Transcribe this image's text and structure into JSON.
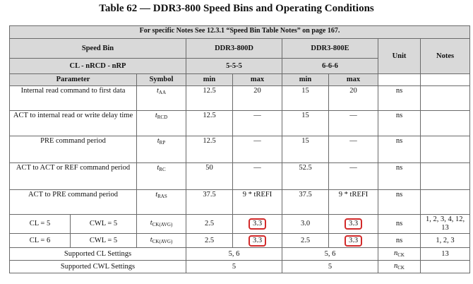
{
  "title": "Table 62 — DDR3-800 Speed Bins and Operating Conditions",
  "note": "For specific Notes See 12.3.1 “Speed Bin Table Notes” on page 167.",
  "header": {
    "speed_bin": "Speed Bin",
    "ddr3_800d": "DDR3-800D",
    "ddr3_800e": "DDR3-800E",
    "unit": "Unit",
    "notes": "Notes",
    "cl_label": "CL - nRCD - nRP",
    "cl_d": "5-5-5",
    "cl_e": "6-6-6",
    "parameter": "Parameter",
    "symbol": "Symbol",
    "min": "min",
    "max": "max"
  },
  "rows": [
    {
      "param": "Internal read command to first data",
      "sym": "t",
      "sub": "AA",
      "dmin": "12.5",
      "dmax": "20",
      "emin": "15",
      "emax": "20",
      "unit": "ns",
      "notes": ""
    },
    {
      "param": "ACT to internal read or write delay time",
      "sym": "t",
      "sub": "RCD",
      "dmin": "12.5",
      "dmax": "—",
      "emin": "15",
      "emax": "—",
      "unit": "ns",
      "notes": ""
    },
    {
      "param": "PRE command period",
      "sym": "t",
      "sub": "RP",
      "dmin": "12.5",
      "dmax": "—",
      "emin": "15",
      "emax": "—",
      "unit": "ns",
      "notes": ""
    },
    {
      "param": "ACT to ACT or REF command period",
      "sym": "t",
      "sub": "RC",
      "dmin": "50",
      "dmax": "—",
      "emin": "52.5",
      "emax": "—",
      "unit": "ns",
      "notes": ""
    },
    {
      "param": "ACT to PRE command period",
      "sym": "t",
      "sub": "RAS",
      "dmin": "37.5",
      "dmax": "9 * tREFI",
      "emin": "37.5",
      "emax": "9 * tREFI",
      "unit": "ns",
      "notes": ""
    }
  ],
  "ck_rows": [
    {
      "cl": "CL = 5",
      "cwl": "CWL = 5",
      "sym": "t",
      "sub": "CK(AVG)",
      "dmin": "2.5",
      "dmax": "3.3",
      "emin": "3.0",
      "emax": "3.3",
      "unit": "ns",
      "notes": "1, 2, 3, 4, 12, 13"
    },
    {
      "cl": "CL = 6",
      "cwl": "CWL = 5",
      "sym": "t",
      "sub": "CK(AVG)",
      "dmin": "2.5",
      "dmax": "3.3",
      "emin": "2.5",
      "emax": "3.3",
      "unit": "ns",
      "notes": "1, 2, 3"
    }
  ],
  "supported": [
    {
      "label": "Supported CL Settings",
      "d": "5, 6",
      "e": "5, 6",
      "unit_sym": "n",
      "unit_sub": "CK",
      "notes": "13"
    },
    {
      "label": "Supported CWL Settings",
      "d": "5",
      "e": "5",
      "unit_sym": "n",
      "unit_sub": "CK",
      "notes": ""
    }
  ],
  "highlight_color": "#d22a2a"
}
